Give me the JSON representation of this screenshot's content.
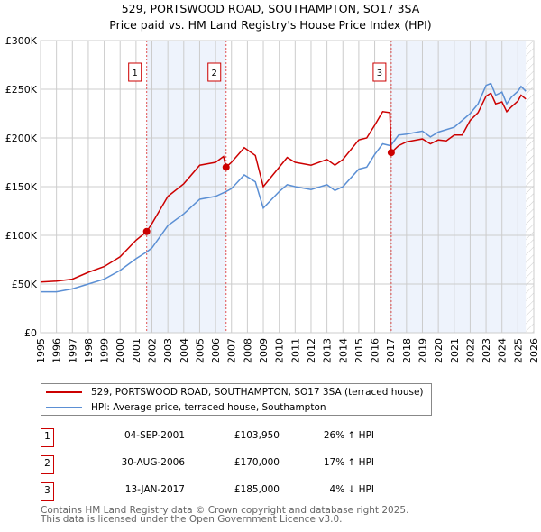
{
  "title": "529, PORTSWOOD ROAD, SOUTHAMPTON, SO17 3SA",
  "subtitle": "Price paid vs. HM Land Registry's House Price Index (HPI)",
  "chart_data": {
    "type": "line",
    "title": "529, PORTSWOOD ROAD, SOUTHAMPTON, SO17 3SA",
    "subtitle": "Price paid vs. HM Land Registry's House Price Index (HPI)",
    "xlim": [
      1995,
      2026
    ],
    "ylim": [
      0,
      300000
    ],
    "x_ticks": [
      "1995",
      "1996",
      "1997",
      "1998",
      "1999",
      "2000",
      "2001",
      "2002",
      "2003",
      "2004",
      "2005",
      "2006",
      "2007",
      "2008",
      "2009",
      "2010",
      "2011",
      "2012",
      "2013",
      "2014",
      "2015",
      "2016",
      "2017",
      "2018",
      "2019",
      "2020",
      "2021",
      "2022",
      "2023",
      "2024",
      "2025",
      "2026"
    ],
    "y_ticks": [
      {
        "v": 0,
        "label": "£0"
      },
      {
        "v": 50000,
        "label": "£50K"
      },
      {
        "v": 100000,
        "label": "£100K"
      },
      {
        "v": 150000,
        "label": "£150K"
      },
      {
        "v": 200000,
        "label": "£200K"
      },
      {
        "v": 250000,
        "label": "£250K"
      },
      {
        "v": 300000,
        "label": "£300K"
      }
    ],
    "grid": true,
    "shaded_ranges": [
      [
        2001.67,
        2006.66
      ],
      [
        2017.04,
        2025.5
      ]
    ],
    "forecast_hatch_from": 2025.5,
    "series": [
      {
        "name": "529, PORTSWOOD ROAD, SOUTHAMPTON, SO17 3SA (terraced house)",
        "color": "#cc0000",
        "x": [
          1995,
          1996,
          1997,
          1998,
          1999,
          2000,
          2001,
          2001.67,
          2002,
          2003,
          2004,
          2005,
          2006,
          2006.5,
          2006.66,
          2007,
          2007.8,
          2008.5,
          2009,
          2010,
          2010.5,
          2011,
          2012,
          2013,
          2013.5,
          2014,
          2015,
          2015.5,
          2016,
          2016.5,
          2016.95,
          2017.04,
          2017.5,
          2018,
          2019,
          2019.5,
          2020,
          2020.5,
          2021,
          2021.5,
          2022,
          2022.5,
          2023,
          2023.3,
          2023.6,
          2024,
          2024.3,
          2024.6,
          2025,
          2025.2,
          2025.5
        ],
        "y": [
          52000,
          53000,
          55000,
          62000,
          68000,
          78000,
          95000,
          103950,
          112000,
          140000,
          153000,
          172000,
          175000,
          181000,
          170000,
          175000,
          190000,
          182000,
          150000,
          170000,
          180000,
          175000,
          172000,
          178000,
          172000,
          178000,
          198000,
          200000,
          213000,
          227000,
          226000,
          185000,
          192000,
          196000,
          199000,
          194000,
          198000,
          197000,
          203000,
          203000,
          218000,
          226000,
          243000,
          246000,
          235000,
          237000,
          227000,
          232000,
          238000,
          244000,
          240000
        ]
      },
      {
        "name": "HPI: Average price, terraced house, Southampton",
        "color": "#5b8fd4",
        "x": [
          1995,
          1996,
          1997,
          1998,
          1999,
          2000,
          2001,
          2001.67,
          2002,
          2003,
          2004,
          2005,
          2006,
          2006.66,
          2007,
          2007.8,
          2008.5,
          2009,
          2010,
          2010.5,
          2011,
          2012,
          2013,
          2013.5,
          2014,
          2015,
          2015.5,
          2016,
          2016.5,
          2017,
          2017.5,
          2018,
          2019,
          2019.5,
          2020,
          2021,
          2022,
          2022.5,
          2023,
          2023.3,
          2023.6,
          2024,
          2024.3,
          2024.6,
          2025,
          2025.2,
          2025.5
        ],
        "y": [
          42000,
          42000,
          45000,
          50000,
          55000,
          64000,
          76000,
          83000,
          87000,
          110000,
          122000,
          137000,
          140000,
          145000,
          148000,
          162000,
          155000,
          128000,
          145000,
          152000,
          150000,
          147000,
          152000,
          146000,
          150000,
          168000,
          170000,
          183000,
          194000,
          192000,
          203000,
          204000,
          207000,
          201000,
          206000,
          211000,
          225000,
          235000,
          254000,
          256000,
          244000,
          247000,
          235000,
          242000,
          248000,
          253000,
          248000
        ]
      }
    ],
    "sales": [
      {
        "n": "1",
        "x": 2001.67,
        "y": 103950,
        "date": "04-SEP-2001",
        "price": "£103,950",
        "hpi": "26% ↑ HPI"
      },
      {
        "n": "2",
        "x": 2006.66,
        "y": 170000,
        "date": "30-AUG-2006",
        "price": "£170,000",
        "hpi": "17% ↑ HPI"
      },
      {
        "n": "3",
        "x": 2017.04,
        "y": 185000,
        "date": "13-JAN-2017",
        "price": "£185,000",
        "hpi": "4% ↓ HPI"
      }
    ]
  },
  "legend": {
    "property": "529, PORTSWOOD ROAD, SOUTHAMPTON, SO17 3SA (terraced house)",
    "hpi": "HPI: Average price, terraced house, Southampton"
  },
  "footer": {
    "line1": "Contains HM Land Registry data © Crown copyright and database right 2025.",
    "line2": "This data is licensed under the Open Government Licence v3.0."
  }
}
